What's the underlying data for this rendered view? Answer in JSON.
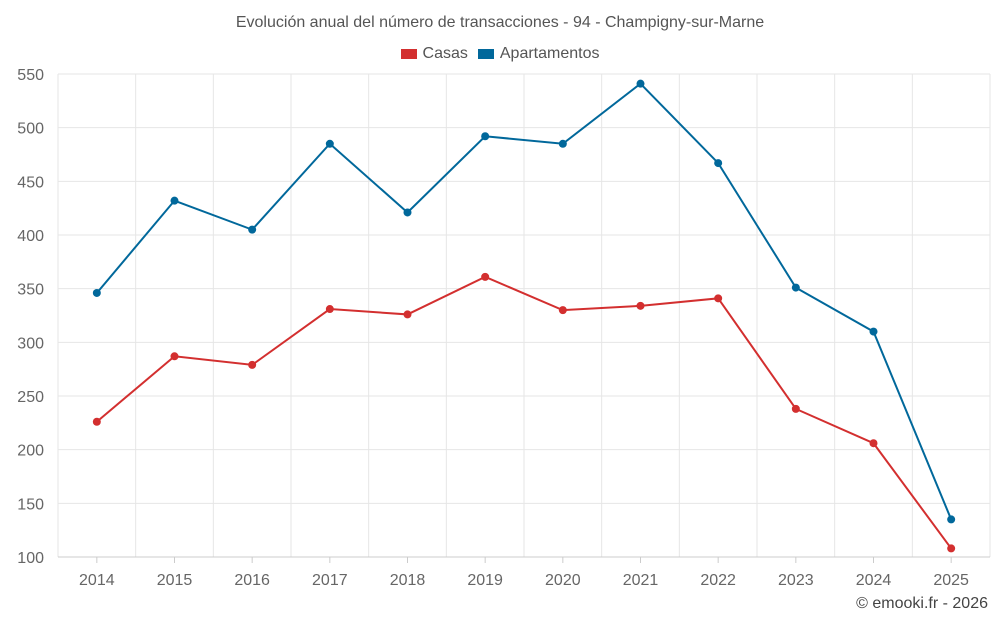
{
  "chart_data": {
    "type": "line",
    "title": "Evolución anual del número de transacciones - 94 - Champigny-sur-Marne",
    "xlabel": "",
    "ylabel": "",
    "categories": [
      "2014",
      "2015",
      "2016",
      "2017",
      "2018",
      "2019",
      "2020",
      "2021",
      "2022",
      "2023",
      "2024",
      "2025"
    ],
    "ylim": [
      100,
      550
    ],
    "yticks": [
      100,
      150,
      200,
      250,
      300,
      350,
      400,
      450,
      500,
      550
    ],
    "grid": true,
    "legend_position": "top-center",
    "series": [
      {
        "name": "Casas",
        "color": "#d32f2f",
        "values": [
          226,
          287,
          279,
          331,
          326,
          361,
          330,
          334,
          341,
          238,
          206,
          108
        ]
      },
      {
        "name": "Apartamentos",
        "color": "#01689b",
        "values": [
          346,
          432,
          405,
          485,
          421,
          492,
          485,
          541,
          467,
          351,
          310,
          135
        ]
      }
    ]
  },
  "credit": "© emooki.fr - 2026"
}
